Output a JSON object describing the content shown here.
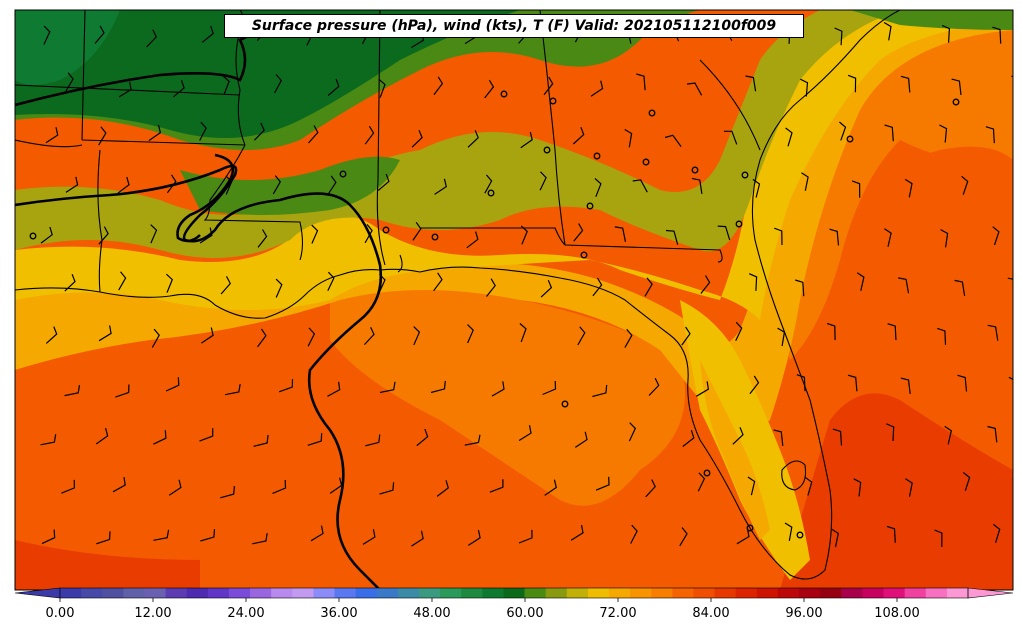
{
  "title": "Surface pressure (hPa), wind (kts), T (F) Valid: 202105112100f009",
  "colorbar": {
    "tick_labels": [
      "0.00",
      "12.00",
      "24.00",
      "36.00",
      "48.00",
      "60.00",
      "72.00",
      "84.00",
      "96.00",
      "108.00"
    ],
    "colors": [
      "#3a3aa8",
      "#4848a8",
      "#5050a0",
      "#6060a8",
      "#6a5fb0",
      "#5c3cb0",
      "#4d2ab0",
      "#5f36c6",
      "#7a4ad8",
      "#9a66e0",
      "#b88aee",
      "#c29af0",
      "#8c8cf8",
      "#5a78f0",
      "#3a6ee8",
      "#3a78c8",
      "#3a8aa8",
      "#3a9a80",
      "#2a9a5a",
      "#1e8a40",
      "#0e7a30",
      "#0a6a1a",
      "#4a8a10",
      "#8a9a10",
      "#c0b008",
      "#eebc00",
      "#f5a800",
      "#f89400",
      "#f87e00",
      "#f56400",
      "#f04e00",
      "#e63800",
      "#dc2400",
      "#cc1400",
      "#bc0808",
      "#a80010",
      "#960010",
      "#a8004a",
      "#c80060",
      "#e0107a",
      "#f040a0",
      "#f870c0",
      "#fc98d4"
    ]
  },
  "field_colors": {
    "dark_green": "#0b6a1e",
    "mid_green": "#0f7a32",
    "olive_green": "#4a8a14",
    "olive": "#a8a410",
    "yellow": "#f0c000",
    "light_orange": "#f5a800",
    "orange": "#f77a00",
    "red_orange": "#f45a00",
    "deep_red_orange": "#e83c00"
  }
}
